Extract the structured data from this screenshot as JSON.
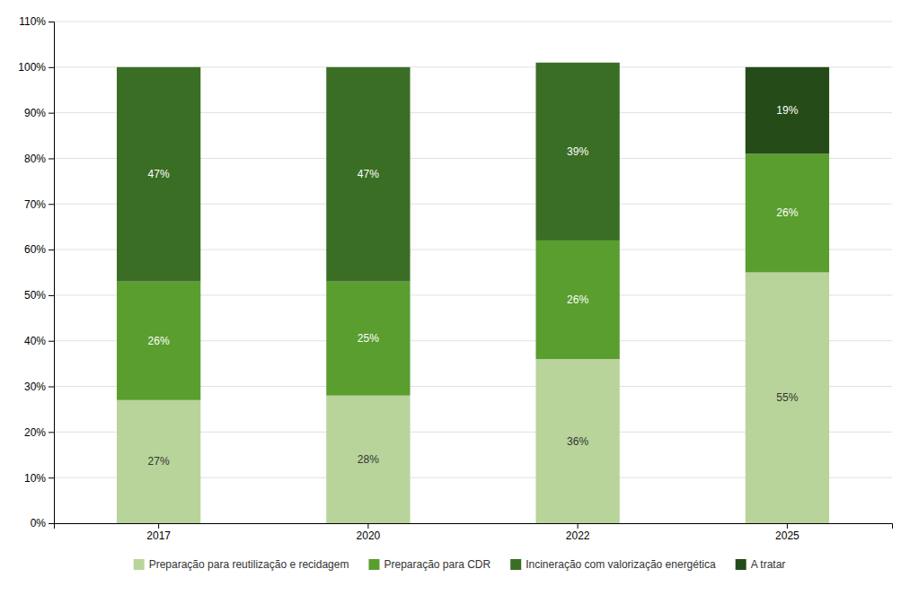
{
  "chart_data": {
    "type": "bar",
    "stacked": true,
    "categories": [
      "2017",
      "2020",
      "2022",
      "2025"
    ],
    "series": [
      {
        "name": "Preparação para reutilização e recidagem",
        "color": "#b8d49a",
        "values": [
          27,
          28,
          36,
          55
        ],
        "value_labels": [
          "27%",
          "28%",
          "36%",
          "55%"
        ]
      },
      {
        "name": "Preparação para CDR",
        "color": "#5a9e2f",
        "values": [
          26,
          25,
          26,
          26
        ],
        "value_labels": [
          "26%",
          "25%",
          "26%",
          "26%"
        ]
      },
      {
        "name": "Incineração com valorização energética",
        "color": "#3a6e25",
        "values": [
          47,
          47,
          39,
          0
        ],
        "value_labels": [
          "47%",
          "47%",
          "39%",
          null
        ]
      },
      {
        "name": "A tratar",
        "color": "#254c18",
        "values": [
          0,
          0,
          0,
          19
        ],
        "value_labels": [
          null,
          null,
          null,
          "19%"
        ]
      }
    ],
    "ylim": [
      0,
      110
    ],
    "yticks": [
      {
        "value": 0,
        "label": "0%"
      },
      {
        "value": 10,
        "label": "10%"
      },
      {
        "value": 20,
        "label": "20%"
      },
      {
        "value": 30,
        "label": "30%"
      },
      {
        "value": 40,
        "label": "40%"
      },
      {
        "value": 50,
        "label": "50%"
      },
      {
        "value": 60,
        "label": "60%"
      },
      {
        "value": 70,
        "label": "70%"
      },
      {
        "value": 80,
        "label": "80%"
      },
      {
        "value": 90,
        "label": "90%"
      },
      {
        "value": 100,
        "label": "100%"
      },
      {
        "value": 110,
        "label": "110%"
      }
    ],
    "grid": true,
    "data_labels": true,
    "legend": "bottom"
  }
}
